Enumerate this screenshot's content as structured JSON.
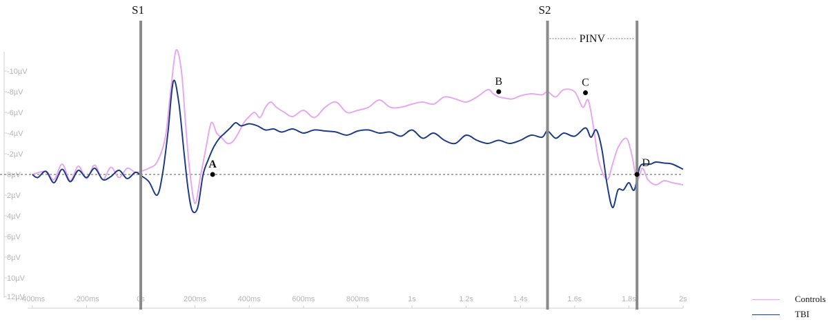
{
  "chart_data": {
    "type": "line",
    "title": "",
    "xlabel": "",
    "ylabel": "",
    "x_ticks": [
      "-400ms",
      "-200ms",
      "0s",
      "200ms",
      "400ms",
      "600ms",
      "800ms",
      "1s",
      "1.2s",
      "1.4s",
      "1.6s",
      "1.8s",
      "2s"
    ],
    "y_ticks": [
      "-10µV",
      "-8µV",
      "-6µV",
      "-4µV",
      "-2µV",
      "0µV",
      "2µV",
      "4µV",
      "6µV",
      "8µV",
      "10µV",
      "12µV"
    ],
    "xlim_ms": [
      -400,
      2000
    ],
    "ylim_uV": [
      -12,
      12
    ],
    "y_axis_inverted": true,
    "grid": false,
    "legend_position": "bottom-right",
    "series": [
      {
        "name": "Controls",
        "color": "#e6a8f0",
        "x_ms": [
          -400,
          -350,
          -320,
          -290,
          -260,
          -230,
          -200,
          -170,
          -140,
          -110,
          -80,
          -50,
          -20,
          0,
          30,
          60,
          90,
          110,
          130,
          150,
          165,
          180,
          200,
          220,
          240,
          260,
          280,
          300,
          320,
          340,
          360,
          380,
          400,
          420,
          440,
          460,
          480,
          500,
          530,
          560,
          600,
          640,
          680,
          720,
          760,
          800,
          840,
          880,
          920,
          960,
          1000,
          1040,
          1080,
          1120,
          1160,
          1200,
          1240,
          1280,
          1300,
          1320,
          1340,
          1370,
          1400,
          1440,
          1480,
          1500,
          1530,
          1560,
          1600,
          1630,
          1650,
          1670,
          1690,
          1720,
          1740,
          1760,
          1790,
          1810,
          1830,
          1850,
          1870,
          1900,
          1930,
          1960,
          2000
        ],
        "y_uV": [
          0,
          -0.3,
          0.5,
          -1,
          0.6,
          -0.8,
          0.4,
          -0.9,
          0.5,
          -0.7,
          0.3,
          -0.6,
          -0.2,
          -0.3,
          -0.6,
          -1.2,
          -3.5,
          -8,
          -12,
          -10,
          -5,
          -0.5,
          2.8,
          0.2,
          -2.5,
          -5,
          -4,
          -3.5,
          -3,
          -3.2,
          -4,
          -5,
          -5.6,
          -6,
          -5.5,
          -6.5,
          -7,
          -6.5,
          -6,
          -5.6,
          -6.2,
          -5.5,
          -6.5,
          -7,
          -6,
          -6.2,
          -6.5,
          -7.2,
          -6.5,
          -6.5,
          -6.8,
          -7,
          -6.8,
          -7.5,
          -7.3,
          -7,
          -7.5,
          -8.2,
          -7.8,
          -7.5,
          -7.4,
          -7.3,
          -7.6,
          -7.8,
          -7.7,
          -8,
          -7.5,
          -8.2,
          -8,
          -6.5,
          -7.2,
          -4.5,
          -1.2,
          0.5,
          -1,
          -2.6,
          -3.5,
          -2,
          0.5,
          -0.6,
          0.5,
          1,
          0.6,
          0.8,
          1
        ]
      },
      {
        "name": "TBI",
        "color": "#1c3a86",
        "x_ms": [
          -400,
          -380,
          -350,
          -320,
          -290,
          -260,
          -230,
          -200,
          -170,
          -140,
          -110,
          -80,
          -50,
          -20,
          0,
          30,
          60,
          80,
          100,
          120,
          140,
          160,
          175,
          190,
          210,
          230,
          250,
          270,
          290,
          310,
          330,
          350,
          370,
          400,
          430,
          460,
          490,
          520,
          560,
          600,
          640,
          680,
          720,
          760,
          800,
          840,
          880,
          920,
          960,
          1000,
          1040,
          1080,
          1120,
          1160,
          1200,
          1240,
          1280,
          1320,
          1360,
          1400,
          1440,
          1480,
          1500,
          1530,
          1560,
          1600,
          1640,
          1660,
          1680,
          1700,
          1720,
          1740,
          1760,
          1780,
          1800,
          1820,
          1840,
          1860,
          1880,
          1900,
          1930,
          1960,
          2000
        ],
        "y_uV": [
          0,
          0.3,
          -0.3,
          0.8,
          -0.5,
          0.7,
          -0.4,
          0.3,
          -0.6,
          0.5,
          0.2,
          -0.4,
          0.4,
          -0.2,
          0.1,
          0.7,
          2,
          0,
          -4,
          -9,
          -7,
          -2,
          1.5,
          3.5,
          3.2,
          0,
          -1.5,
          -2.7,
          -3.5,
          -4,
          -4.5,
          -5,
          -4.7,
          -4.9,
          -4.7,
          -4.3,
          -4.4,
          -4.1,
          -4.4,
          -4.0,
          -4.3,
          -4.2,
          -4.1,
          -3.8,
          -4.2,
          -4.3,
          -4.0,
          -4.1,
          -3.7,
          -4.3,
          -3.5,
          -4,
          -3.3,
          -3.0,
          -3.8,
          -3.3,
          -3,
          -3.3,
          -3,
          -3.3,
          -3.8,
          -3.6,
          -4.2,
          -3.5,
          -4.0,
          -3.7,
          -4.5,
          -3.6,
          -4.3,
          -2.5,
          1.0,
          3.2,
          1.5,
          1.5,
          0.8,
          1.5,
          -0.7,
          -1.0,
          -1.0,
          -1.2,
          -1.1,
          -1.0,
          -0.5
        ]
      }
    ],
    "vertical_markers": [
      {
        "label": "S1",
        "x_ms": 0
      },
      {
        "label": "S2",
        "x_ms": 1500
      },
      {
        "label": "",
        "x_ms": 1830
      }
    ],
    "annotations": [
      {
        "label": "A",
        "x_ms": 265,
        "y_uV": 0
      },
      {
        "label": "B",
        "x_ms": 1320,
        "y_uV": -8.0
      },
      {
        "label": "C",
        "x_ms": 1640,
        "y_uV": -7.9
      },
      {
        "label": "D",
        "x_ms": 1830,
        "y_uV": 0
      }
    ],
    "interval_label": {
      "label": "PINV",
      "from_ms": 1500,
      "to_ms": 1830
    }
  },
  "legend": {
    "items": [
      {
        "label": "Controls",
        "color": "#e6a8f0"
      },
      {
        "label": "TBI",
        "color": "#1c3a86"
      }
    ]
  }
}
